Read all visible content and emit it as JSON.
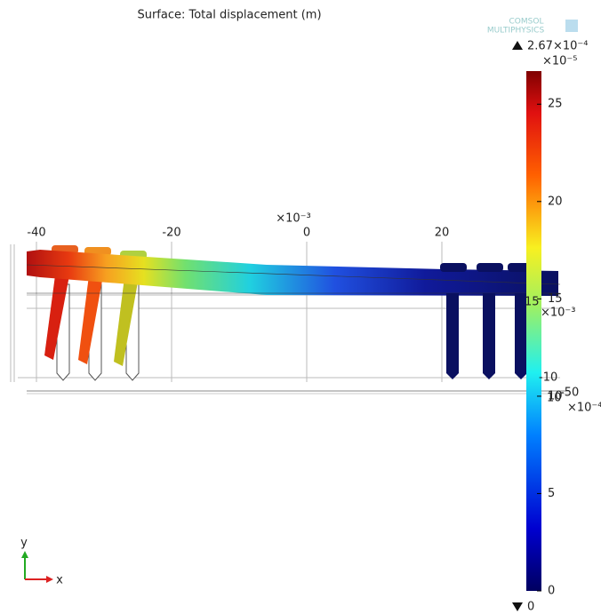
{
  "title": "Surface: Total displacement (m)",
  "logo": {
    "line1": "COMSOL",
    "line2": "MULTIPHYSICS"
  },
  "colorbar": {
    "max_label": "2.67×10⁻⁴",
    "min_label": "0",
    "multiplier": "×10⁻⁵",
    "lim": [
      0,
      26.7
    ],
    "ticks": [
      0,
      5,
      10,
      15,
      20,
      25
    ]
  },
  "x_axis": {
    "multiplier": "×10⁻³",
    "ticks": [
      -40,
      -20,
      0,
      20
    ]
  },
  "overlapping_labels": [
    "15",
    "×10⁻³",
    "-10",
    "-50",
    "10",
    "×10⁻⁴"
  ],
  "triad": {
    "y": "y",
    "x": "x"
  }
}
